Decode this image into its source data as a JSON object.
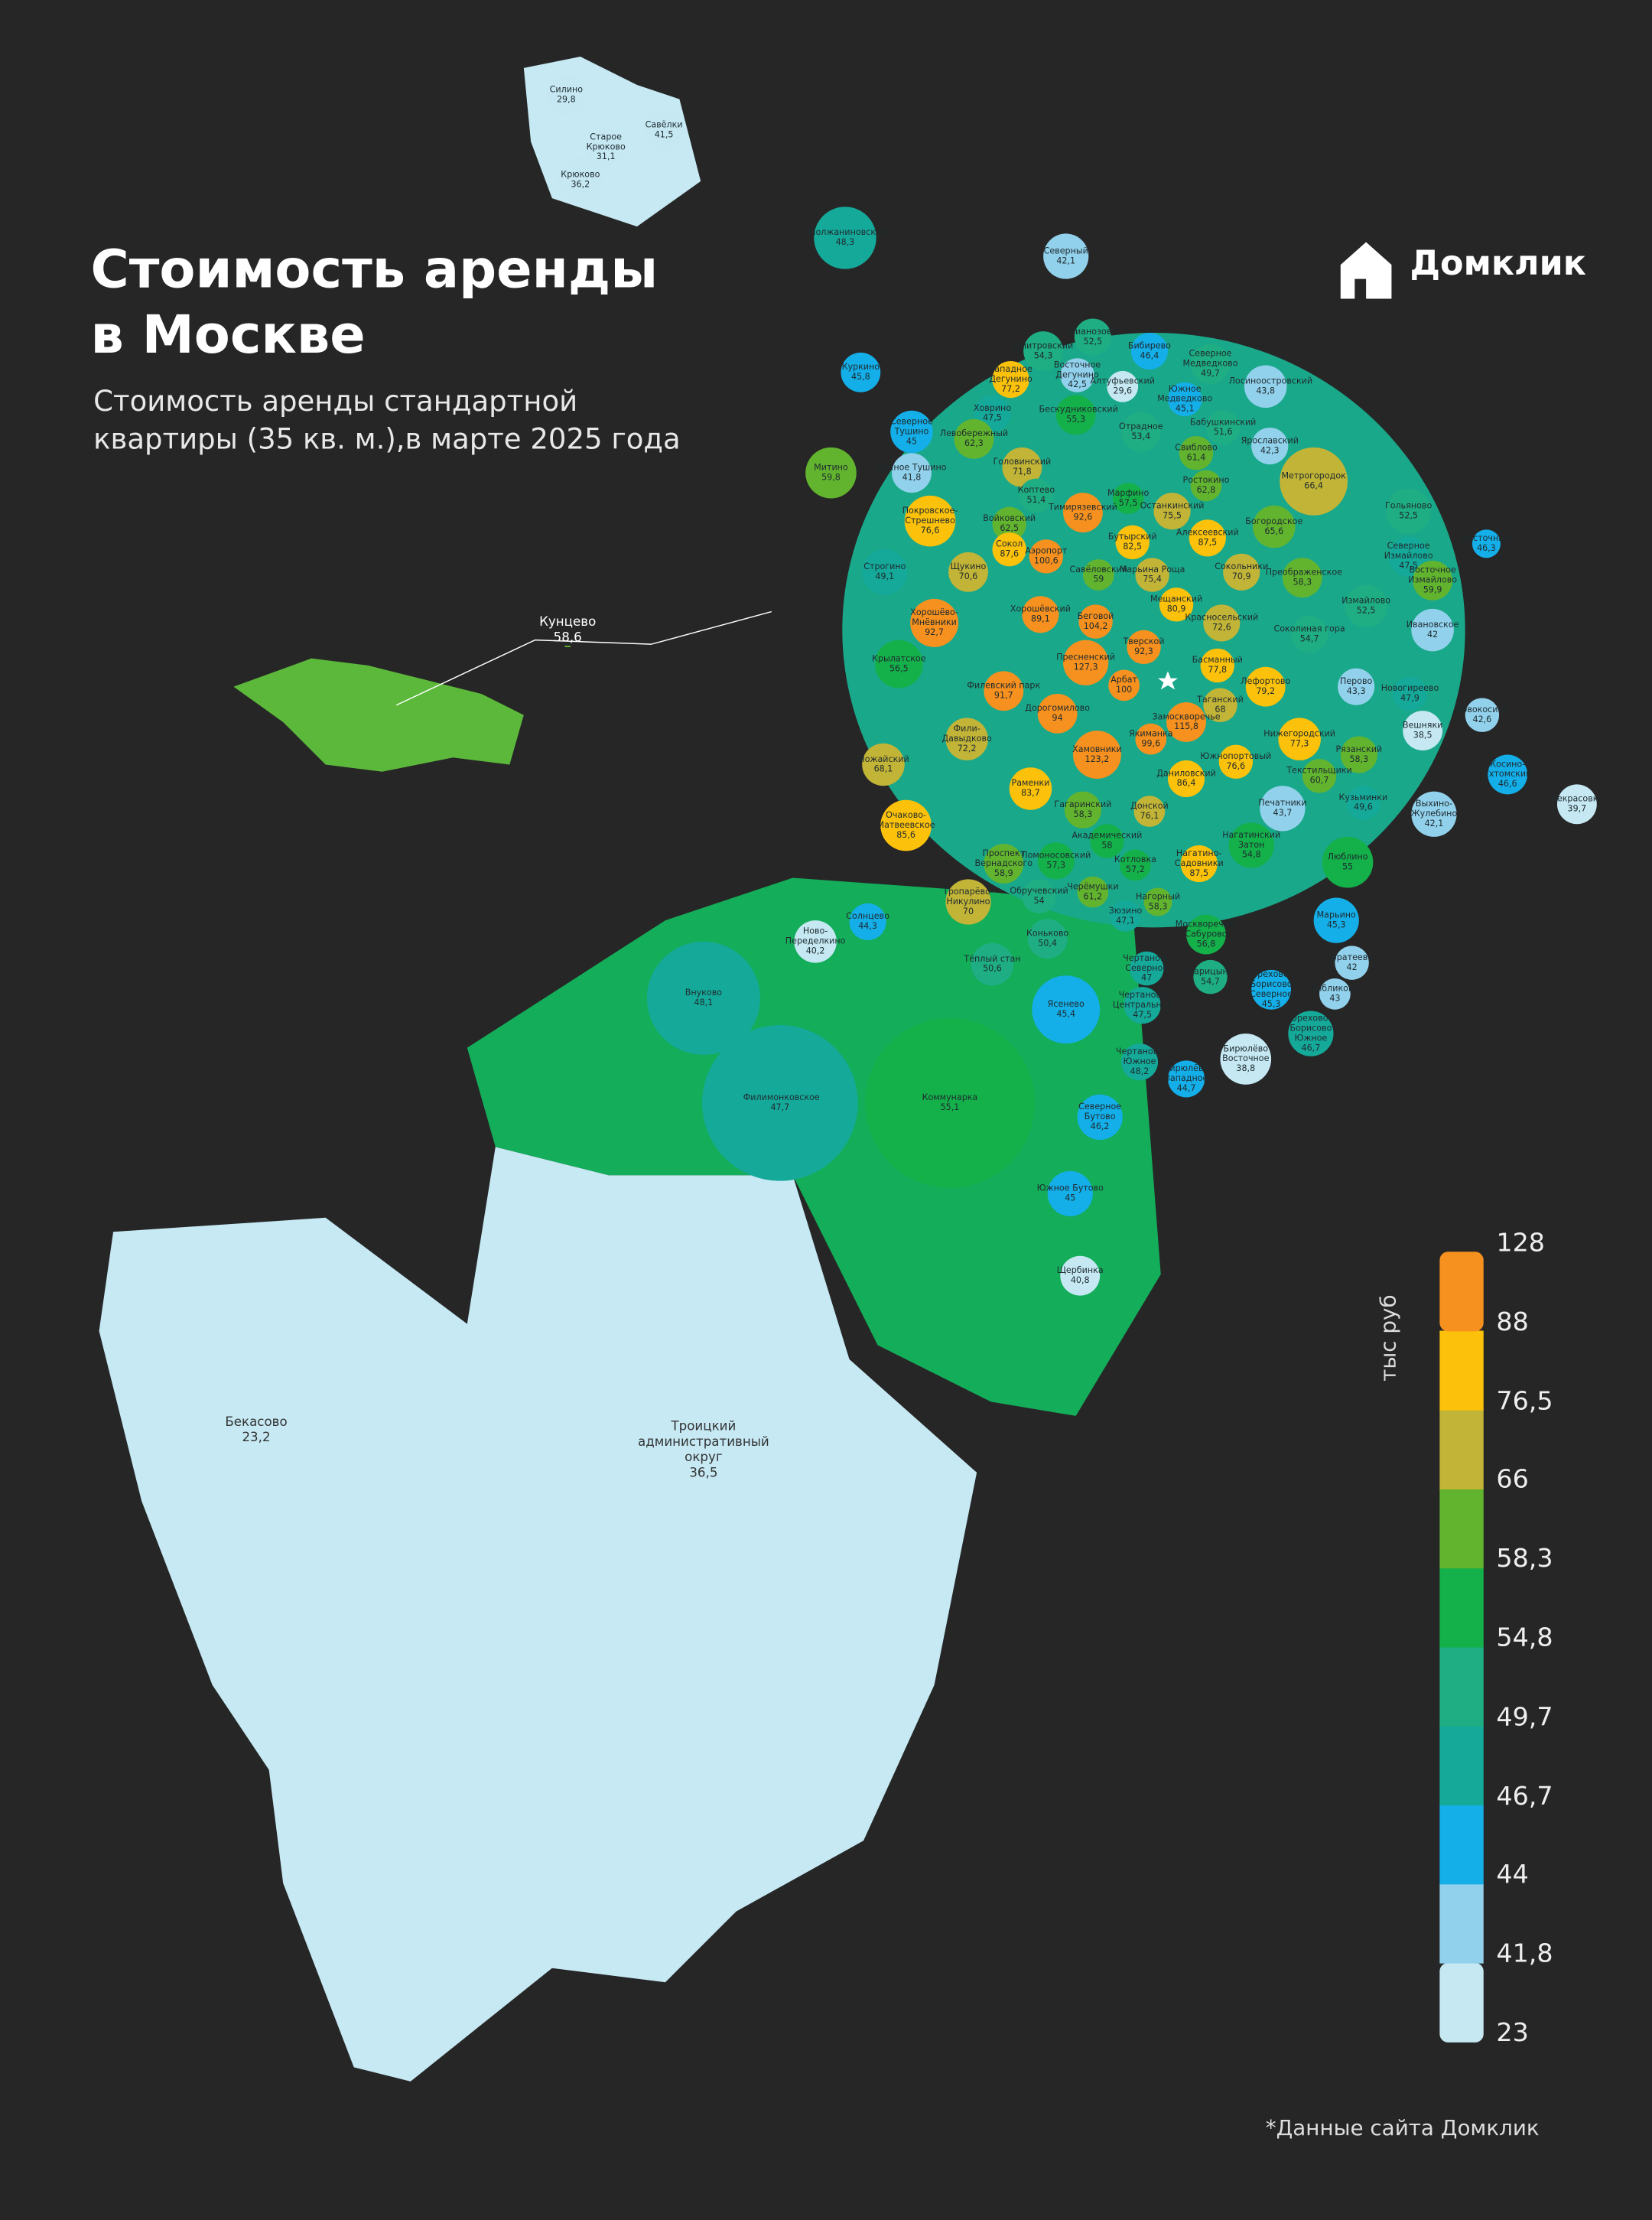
{
  "header": {
    "title": "Стоимость аренды в Москве",
    "subtitle": "Стоимость аренды стандартной квартиры (35 кв. м.),в марте 2025 года",
    "logo": "Домклик"
  },
  "legend": {
    "unit": "тыс руб",
    "ticks": [
      23,
      {
        "value": 41.8,
        "label": "41,8"
      },
      44,
      {
        "value": 46.7,
        "label": "46,7"
      },
      {
        "value": 49.7,
        "label": "49,7"
      },
      {
        "value": 54.8,
        "label": "54,8"
      },
      {
        "value": 58.3,
        "label": "58,3"
      },
      66,
      {
        "value": 76.5,
        "label": "76,5"
      },
      88,
      128
    ],
    "colors": [
      "#c5e8f3",
      "#92d1ec",
      "#14aee8",
      "#15a99a",
      "#1fae83",
      "#14b04a",
      "#62b42f",
      "#c2b437",
      "#fcc10a",
      "#f6901e"
    ]
  },
  "districts": [
    {
      "name": "Силино",
      "value": 29.8,
      "label": "29,8"
    },
    {
      "name": "Старое Крюково",
      "value": 31.1,
      "label": "31,1"
    },
    {
      "name": "Савёлки",
      "value": 41.5,
      "label": "41,5"
    },
    {
      "name": "Крюково",
      "value": 36.2,
      "label": "36,2"
    },
    {
      "name": "Молжаниновский",
      "value": 48.3,
      "label": "48,3"
    },
    {
      "name": "Северный",
      "value": 42.1,
      "label": "42,1"
    },
    {
      "name": "Дмитровский",
      "value": 54.3,
      "label": "54,3"
    },
    {
      "name": "Лианозово",
      "value": 52.5,
      "label": "52,5"
    },
    {
      "name": "Бибирево",
      "value": 46.4,
      "label": "46,4"
    },
    {
      "name": "Северное Медведково",
      "value": 49.7,
      "label": "49,7"
    },
    {
      "name": "Западное Дегунино",
      "value": 77.2,
      "label": "77,2"
    },
    {
      "name": "Восточное Дегунино",
      "value": 42.5,
      "label": "42,5"
    },
    {
      "name": "Алтуфьевский",
      "value": 29.6,
      "label": "29,6"
    },
    {
      "name": "Лосиноостровский",
      "value": 43.8,
      "label": "43,8"
    },
    {
      "name": "Куркино",
      "value": 45.8,
      "label": "45,8"
    },
    {
      "name": "Ховрино",
      "value": 47.5,
      "label": "47,5"
    },
    {
      "name": "Бескудниковский",
      "value": 55.3,
      "label": "55,3"
    },
    {
      "name": "Южное Медведково",
      "value": 45.1,
      "label": "45,1"
    },
    {
      "name": "Бабушкинский",
      "value": 51.6,
      "label": "51,6"
    },
    {
      "name": "Ярославский",
      "value": 42.3,
      "label": "42,3"
    },
    {
      "name": "Северное Тушино",
      "value": 45,
      "label": "45"
    },
    {
      "name": "Левобережный",
      "value": 62.3,
      "label": "62,3"
    },
    {
      "name": "Отрадное",
      "value": 53.4,
      "label": "53,4"
    },
    {
      "name": "Свиблово",
      "value": 61.4,
      "label": "61,4"
    },
    {
      "name": "Головинский",
      "value": 71.8,
      "label": "71,8"
    },
    {
      "name": "Митино",
      "value": 59.8,
      "label": "59,8"
    },
    {
      "name": "Южное Тушино",
      "value": 41.8,
      "label": "41,8"
    },
    {
      "name": "Метрогородок",
      "value": 66.4,
      "label": "66,4"
    },
    {
      "name": "Марфино",
      "value": 57.5,
      "label": "57,5"
    },
    {
      "name": "Ростокино",
      "value": 62.8,
      "label": "62,8"
    },
    {
      "name": "Коптево",
      "value": 51.4,
      "label": "51,4"
    },
    {
      "name": "Останкинский",
      "value": 75.5,
      "label": "75,5"
    },
    {
      "name": "Гольяново",
      "value": 52.5,
      "label": "52,5"
    },
    {
      "name": "Покровское-Стрешнево",
      "value": 76.6,
      "label": "76,6"
    },
    {
      "name": "Тимирязевский",
      "value": 92.6,
      "label": "92,6"
    },
    {
      "name": "Войковский",
      "value": 62.5,
      "label": "62,5"
    },
    {
      "name": "Богородское",
      "value": 65.6,
      "label": "65,6"
    },
    {
      "name": "Бутырский",
      "value": 82.5,
      "label": "82,5"
    },
    {
      "name": "Алексеевский",
      "value": 87.5,
      "label": "87,5"
    },
    {
      "name": "Сокол",
      "value": 87.6,
      "label": "87,6"
    },
    {
      "name": "Аэропорт",
      "value": 100.6,
      "label": "100,6"
    },
    {
      "name": "Северное Измайлово",
      "value": 47.5,
      "label": "47,5"
    },
    {
      "name": "Восточный",
      "value": 46.3,
      "label": "46,3"
    },
    {
      "name": "Строгино",
      "value": 49.1,
      "label": "49,1"
    },
    {
      "name": "Щукино",
      "value": 70.6,
      "label": "70,6"
    },
    {
      "name": "Савёловский",
      "value": 59,
      "label": "59"
    },
    {
      "name": "Марьина Роща",
      "value": 75.4,
      "label": "75,4"
    },
    {
      "name": "Сокольники",
      "value": 70.9,
      "label": "70,9"
    },
    {
      "name": "Преображенское",
      "value": 58.3,
      "label": "58,3"
    },
    {
      "name": "Восточное Измайлово",
      "value": 59.9,
      "label": "59,9"
    },
    {
      "name": "Мещанский",
      "value": 80.9,
      "label": "80,9"
    },
    {
      "name": "Измайлово",
      "value": 52.5,
      "label": "52,5"
    },
    {
      "name": "Хорошёво-Мнёвники",
      "value": 92.7,
      "label": "92,7"
    },
    {
      "name": "Хорошёвский",
      "value": 89.1,
      "label": "89,1"
    },
    {
      "name": "Беговой",
      "value": 104.2,
      "label": "104,2"
    },
    {
      "name": "Красносельский",
      "value": 72.6,
      "label": "72,6"
    },
    {
      "name": "Соколиная гора",
      "value": 54.7,
      "label": "54,7"
    },
    {
      "name": "Ивановское",
      "value": 42,
      "label": "42"
    },
    {
      "name": "Крылатское",
      "value": 56.5,
      "label": "56,5"
    },
    {
      "name": "Пресненский",
      "value": 127.3,
      "label": "127,3"
    },
    {
      "name": "Тверской",
      "value": 92.3,
      "label": "92,3"
    },
    {
      "name": "Басманный",
      "value": 77.8,
      "label": "77,8"
    },
    {
      "name": "Лефортово",
      "value": 79.2,
      "label": "79,2"
    },
    {
      "name": "Перово",
      "value": 43.3,
      "label": "43,3"
    },
    {
      "name": "Новогиреево",
      "value": 47.9,
      "label": "47,9"
    },
    {
      "name": "Новокосино",
      "value": 42.6,
      "label": "42,6"
    },
    {
      "name": "Филевский парк",
      "value": 91.7,
      "label": "91,7"
    },
    {
      "name": "Арбат",
      "value": 100,
      "label": "100"
    },
    {
      "name": "Таганский",
      "value": 68,
      "label": "68"
    },
    {
      "name": "Дорогомилово",
      "value": 94,
      "label": "94"
    },
    {
      "name": "Замоскворечье",
      "value": 115.8,
      "label": "115,8"
    },
    {
      "name": "Якиманка",
      "value": 99.6,
      "label": "99,6"
    },
    {
      "name": "Фили-Давыдково",
      "value": 72.2,
      "label": "72,2"
    },
    {
      "name": "Нижегородский",
      "value": 77.3,
      "label": "77,3"
    },
    {
      "name": "Вешняки",
      "value": 38.5,
      "label": "38,5"
    },
    {
      "name": "Можайский",
      "value": 68.1,
      "label": "68,1"
    },
    {
      "name": "Хамовники",
      "value": 123.2,
      "label": "123,2"
    },
    {
      "name": "Южнопортовый",
      "value": 76.6,
      "label": "76,6"
    },
    {
      "name": "Рязанский",
      "value": 58.3,
      "label": "58,3"
    },
    {
      "name": "Косино-Ухтомский",
      "value": 46.6,
      "label": "46,6"
    },
    {
      "name": "Даниловский",
      "value": 86.4,
      "label": "86,4"
    },
    {
      "name": "Текстильщики",
      "value": 60.7,
      "label": "60,7"
    },
    {
      "name": "Раменки",
      "value": 83.7,
      "label": "83,7"
    },
    {
      "name": "Некрасовка",
      "value": 39.7,
      "label": "39,7"
    },
    {
      "name": "Печатники",
      "value": 43.7,
      "label": "43,7"
    },
    {
      "name": "Кузьминки",
      "value": 49.6,
      "label": "49,6"
    },
    {
      "name": "Выхино-Жулебино",
      "value": 42.1,
      "label": "42,1"
    },
    {
      "name": "Очаково-Матвеевское",
      "value": 85.6,
      "label": "85,6"
    },
    {
      "name": "Гагаринский",
      "value": 58.3,
      "label": "58,3"
    },
    {
      "name": "Донской",
      "value": 76.1,
      "label": "76,1"
    },
    {
      "name": "Академический",
      "value": 58,
      "label": "58"
    },
    {
      "name": "Нагатинский Затон",
      "value": 54.8,
      "label": "54,8"
    },
    {
      "name": "Ломоносовский",
      "value": 57.3,
      "label": "57,3"
    },
    {
      "name": "Проспект Вернадского",
      "value": 58.9,
      "label": "58,9"
    },
    {
      "name": "Котловка",
      "value": 57.2,
      "label": "57,2"
    },
    {
      "name": "Нагатино-Садовники",
      "value": 87.5,
      "label": "87,5"
    },
    {
      "name": "Люблино",
      "value": 55,
      "label": "55"
    },
    {
      "name": "Тропарёво-Никулино",
      "value": 70,
      "label": "70"
    },
    {
      "name": "Черёмушки",
      "value": 61.2,
      "label": "61,2"
    },
    {
      "name": "Обручевский",
      "value": 54,
      "label": "54"
    },
    {
      "name": "Нагорный",
      "value": 58.3,
      "label": "58,3"
    },
    {
      "name": "Зюзино",
      "value": 47.1,
      "label": "47,1"
    },
    {
      "name": "Солнцево",
      "value": 44.3,
      "label": "44,3"
    },
    {
      "name": "Марьино",
      "value": 45.3,
      "label": "45,3"
    },
    {
      "name": "Ново-Переделкино",
      "value": 40.2,
      "label": "40,2"
    },
    {
      "name": "Коньково",
      "value": 50.4,
      "label": "50,4"
    },
    {
      "name": "Москворечье-Сабурово",
      "value": 56.8,
      "label": "56,8"
    },
    {
      "name": "Братеево",
      "value": 42,
      "label": "42"
    },
    {
      "name": "Тёплый стан",
      "value": 50.6,
      "label": "50,6"
    },
    {
      "name": "Чертаново Северное",
      "value": 47,
      "label": "47"
    },
    {
      "name": "Царицыно",
      "value": 54.7,
      "label": "54,7"
    },
    {
      "name": "Орехово-Борисово Северное",
      "value": 45.3,
      "label": "45,3"
    },
    {
      "name": "Зябликово",
      "value": 43,
      "label": "43"
    },
    {
      "name": "Внуково",
      "value": 48.1,
      "label": "48,1"
    },
    {
      "name": "Ясенево",
      "value": 45.4,
      "label": "45,4"
    },
    {
      "name": "Чертаново Центральное",
      "value": 47.5,
      "label": "47,5"
    },
    {
      "name": "Орехово-Борисово Южное",
      "value": 46.7,
      "label": "46,7"
    },
    {
      "name": "Чертаново Южное",
      "value": 48.2,
      "label": "48,2"
    },
    {
      "name": "Бирюлёво Восточное",
      "value": 38.8,
      "label": "38,8"
    },
    {
      "name": "Бирюлёво Западное",
      "value": 44.7,
      "label": "44,7"
    },
    {
      "name": "Филимонковское",
      "value": 47.7,
      "label": "47,7"
    },
    {
      "name": "Коммунарка",
      "value": 55.1,
      "label": "55,1"
    },
    {
      "name": "Северное Бутово",
      "value": 46.2,
      "label": "46,2"
    },
    {
      "name": "Южное Бутово",
      "value": 45,
      "label": "45"
    },
    {
      "name": "Щербинка",
      "value": 40.8,
      "label": "40,8"
    },
    {
      "name": "Кунцево",
      "value": 58.6,
      "label": "58,6"
    },
    {
      "name": "Бекасово",
      "value": 23.2,
      "label": "23,2"
    },
    {
      "name": "Троицкий административный округ",
      "value": 36.5,
      "label": "36,5"
    }
  ],
  "footnote": "*Данные сайта Домклик"
}
